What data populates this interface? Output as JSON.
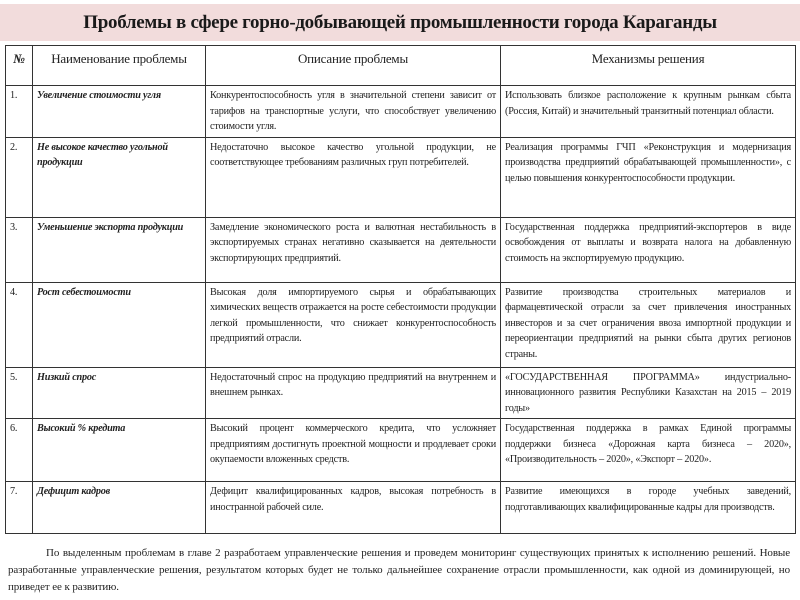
{
  "title": "Проблемы в сфере горно-добывающей промышленности города Караганды",
  "table": {
    "headers": [
      "№",
      "Наименование проблемы",
      "Описание проблемы",
      "Механизмы решения"
    ],
    "rows": [
      {
        "num": "1.",
        "name": "Увеличение стоимости угля",
        "description": "Конкурентоспособность угля в значительной степени зависит от тарифов на транспортные услуги, что способствует увеличению стоимости угля.",
        "solution": "Использовать близкое расположение к крупным рынкам сбыта (Россия, Китай) и значительный транзитный потенциал области."
      },
      {
        "num": "2.",
        "name": "Не высокое качество угольной продукции",
        "description": "Недостаточно высокое качество угольной продукции, не соответствующее требованиям различных груп потребителей.",
        "solution": "Реализация программы ГЧП «Реконструкция и модернизация производства предприятий обрабатывающей промышленности», с целью повышения конкурентоспособности продукции."
      },
      {
        "num": "3.",
        "name": "Уменьшение экспорта продукции",
        "description": "Замедление экономического роста и валютная нестабильность в экспортируемых странах негативно сказывается на деятельности экспортирующих предприятий.",
        "solution": "Государственная поддержка предприятий-экспортеров в виде освобождения от выплаты и возврата налога на добавленную стоимость на экспортируемую продукцию."
      },
      {
        "num": "4.",
        "name": "Рост себестоимости",
        "description": "Высокая доля импортируемого сырья и обрабатывающих химических веществ отражается на росте себестоимости продукции легкой промышленности, что снижает конкурентоспособность предприятий отрасли.",
        "solution": "Развитие производства строительных материалов и фармацевтической отрасли за счет привлечения иностранных инвесторов и за счет ограничения ввоза импортной продукции и переориентации предприятий на рынки сбыта других регионов страны."
      },
      {
        "num": "5.",
        "name": "Низкий спрос",
        "description": "Недостаточный спрос на продукцию предприятий на внутреннем и внешнем рынках.",
        "solution": "«ГОСУДАРСТВЕННАЯ ПРОГРАММА» индустриально-инновационного развития Республики Казахстан на 2015 – 2019 годы»"
      },
      {
        "num": "6.",
        "name": "Высокий % кредита",
        "description": "Высокий процент коммерческого кредита, что усложняет предприятиям достигнуть проектной мощности и продлевает сроки окупаемости вложенных средств.",
        "solution": "Государственная поддержка в рамках Единой программы поддержки бизнеса «Дорожная карта бизнеса – 2020», «Производительность – 2020», «Экспорт – 2020»."
      },
      {
        "num": "7.",
        "name": "Дефицит кадров",
        "description": "Дефицит квалифицированных кадров, высокая потребность в иностранной рабочей силе.",
        "solution": "Развитие имеющихся в городе учебных заведений, подготавливающих квалифицированные кадры для производств."
      }
    ]
  },
  "paragraph": "По выделенным проблемам в главе 2 разработаем управленческие решения и проведем мониторинг существующих принятых к исполнению решений. Новые разработанные управленческие решения, результатом которых будет не только дальнейшее сохранение отрасли промышленности, как одной из доминирующей, но приведет ее к развитию.",
  "colors": {
    "title_band": "#f2dcdc",
    "border": "#333333"
  }
}
